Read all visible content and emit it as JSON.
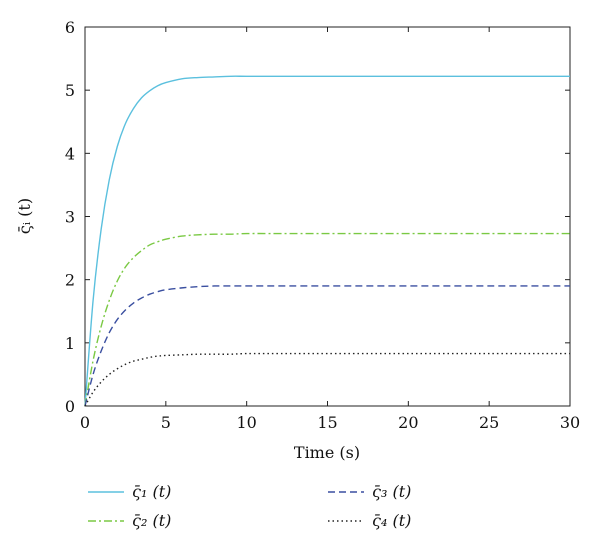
{
  "chart_data": {
    "type": "line",
    "xlabel": "Time (s)",
    "ylabel": "ς̄ᵢ (t)",
    "xlim": [
      0,
      30
    ],
    "ylim": [
      0,
      6
    ],
    "xticks": [
      "0",
      "5",
      "10",
      "15",
      "20",
      "25",
      "30"
    ],
    "yticks": [
      "0",
      "1",
      "2",
      "3",
      "4",
      "5",
      "6"
    ],
    "grid": false,
    "legend_position": "bottom",
    "series": [
      {
        "name": "ς̄₁ (t)",
        "color": "#5bc0de",
        "dash": "solid",
        "x": [
          0,
          0.5,
          1,
          1.5,
          2,
          2.5,
          3,
          3.5,
          4,
          4.5,
          5,
          6,
          7,
          8,
          9,
          10,
          12,
          15,
          20,
          25,
          30
        ],
        "y": [
          0,
          1.67,
          2.8,
          3.58,
          4.11,
          4.47,
          4.71,
          4.88,
          4.99,
          5.07,
          5.12,
          5.18,
          5.2,
          5.21,
          5.22,
          5.22,
          5.22,
          5.22,
          5.22,
          5.22,
          5.22
        ]
      },
      {
        "name": "ς̄₂ (t)",
        "color": "#7ac943",
        "dash": "dashdot",
        "x": [
          0,
          0.5,
          1,
          1.5,
          2,
          2.5,
          3,
          3.5,
          4,
          4.5,
          5,
          6,
          7,
          8,
          9,
          10,
          12,
          15,
          20,
          25,
          30
        ],
        "y": [
          0,
          0.72,
          1.26,
          1.67,
          1.98,
          2.2,
          2.35,
          2.46,
          2.55,
          2.6,
          2.64,
          2.69,
          2.71,
          2.72,
          2.72,
          2.73,
          2.73,
          2.73,
          2.73,
          2.73,
          2.73
        ]
      },
      {
        "name": "ς̄₃ (t)",
        "color": "#3a4fa0",
        "dash": "dashed",
        "x": [
          0,
          0.5,
          1,
          1.5,
          2,
          2.5,
          3,
          3.5,
          4,
          4.5,
          5,
          6,
          7,
          8,
          9,
          10,
          12,
          15,
          20,
          25,
          30
        ],
        "y": [
          0,
          0.5,
          0.87,
          1.16,
          1.37,
          1.52,
          1.63,
          1.71,
          1.77,
          1.81,
          1.84,
          1.87,
          1.89,
          1.9,
          1.9,
          1.9,
          1.9,
          1.9,
          1.9,
          1.9,
          1.9
        ]
      },
      {
        "name": "ς̄₄ (t)",
        "color": "#222222",
        "dash": "dotted",
        "x": [
          0,
          0.5,
          1,
          1.5,
          2,
          2.5,
          3,
          3.5,
          4,
          4.5,
          5,
          6,
          7,
          8,
          9,
          10,
          12,
          15,
          20,
          25,
          30
        ],
        "y": [
          0,
          0.22,
          0.38,
          0.5,
          0.59,
          0.66,
          0.71,
          0.74,
          0.77,
          0.79,
          0.8,
          0.81,
          0.82,
          0.82,
          0.82,
          0.83,
          0.83,
          0.83,
          0.83,
          0.83,
          0.83
        ]
      }
    ]
  }
}
